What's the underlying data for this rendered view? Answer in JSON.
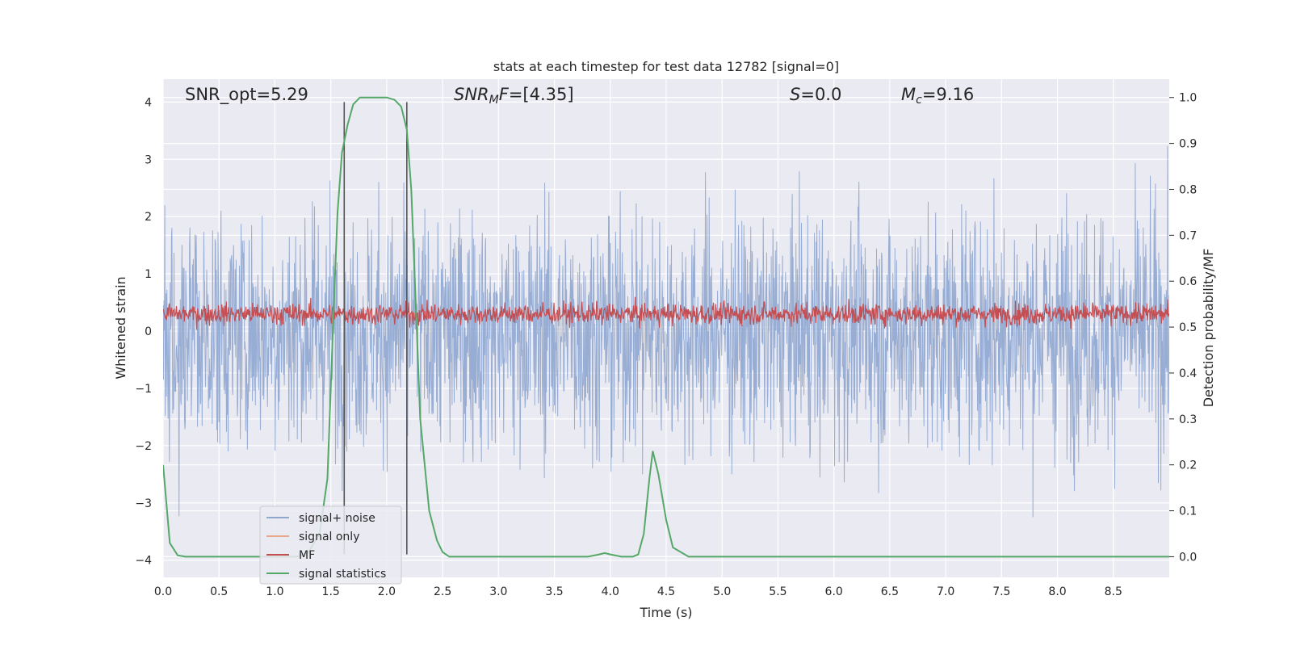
{
  "chart_data": {
    "type": "line",
    "title": "stats at each timestep for test data 12782 [signal=0]",
    "xlabel": "Time (s)",
    "ylabel": "Whitened strain",
    "y2label": "Detection probability/MF",
    "xlim": [
      0.0,
      9.0
    ],
    "ylim": [
      -4.3,
      4.4
    ],
    "y2lim": [
      -0.045,
      1.04
    ],
    "x_ticks": [
      "0.0",
      "0.5",
      "1.0",
      "1.5",
      "2.0",
      "2.5",
      "3.0",
      "3.5",
      "4.0",
      "4.5",
      "5.0",
      "5.5",
      "6.0",
      "6.5",
      "7.0",
      "7.5",
      "8.0",
      "8.5"
    ],
    "y_ticks": [
      "4",
      "3",
      "2",
      "1",
      "0",
      "−1",
      "−2",
      "−3",
      "−4"
    ],
    "y2_ticks": [
      "1.0",
      "0.9",
      "0.8",
      "0.7",
      "0.6",
      "0.5",
      "0.4",
      "0.3",
      "0.2",
      "0.1",
      "0.0"
    ],
    "grid": true,
    "legend_position": "lower-left",
    "annotations": {
      "snr_opt": "SNR_opt=5.29",
      "snr_mf_sym": "SNR",
      "snr_mf_sub": "M",
      "snr_mf_rest": "F=[4.35]",
      "s_sym": "S",
      "s_val": "=0.0",
      "mc_sym": "M",
      "mc_sub": "c",
      "mc_val": "=9.16"
    },
    "vlines": [
      1.62,
      2.18
    ],
    "series": [
      {
        "name": "signal+ noise",
        "color": "#8fa6cf",
        "axis": "left",
        "description_range": [
          -4.0,
          4.0
        ],
        "mean_abs": 1.1
      },
      {
        "name": "signal only",
        "color": "#e8a88c",
        "axis": "left",
        "values": []
      },
      {
        "name": "MF",
        "color": "#c44e52",
        "axis": "left",
        "range": [
          0.0,
          0.85
        ]
      },
      {
        "name": "signal statistics",
        "color": "#55a868",
        "axis": "right",
        "x": [
          0.0,
          0.06,
          0.13,
          0.2,
          0.3,
          0.5,
          0.8,
          1.0,
          1.2,
          1.3,
          1.4,
          1.47,
          1.52,
          1.56,
          1.6,
          1.65,
          1.7,
          1.76,
          1.8,
          1.9,
          2.0,
          2.07,
          2.13,
          2.18,
          2.22,
          2.26,
          2.3,
          2.38,
          2.45,
          2.5,
          2.56,
          2.7,
          3.0,
          3.5,
          3.8,
          3.9,
          3.95,
          4.0,
          4.1,
          4.2,
          4.25,
          4.3,
          4.35,
          4.38,
          4.43,
          4.5,
          4.56,
          4.7,
          5.0,
          6.0,
          7.0,
          8.0,
          9.0
        ],
        "y": [
          0.2,
          0.03,
          0.003,
          0.0,
          0.0,
          0.0,
          0.0,
          0.0,
          0.0,
          0.01,
          0.05,
          0.17,
          0.5,
          0.75,
          0.88,
          0.94,
          0.985,
          1.0,
          1.0,
          1.0,
          1.0,
          0.995,
          0.98,
          0.93,
          0.8,
          0.55,
          0.3,
          0.1,
          0.035,
          0.01,
          0.0,
          0.0,
          0.0,
          0.0,
          0.0,
          0.005,
          0.008,
          0.005,
          0.0,
          0.0,
          0.005,
          0.05,
          0.17,
          0.23,
          0.18,
          0.08,
          0.02,
          0.0,
          0.0,
          0.0,
          0.0,
          0.0,
          0.0
        ]
      }
    ]
  }
}
